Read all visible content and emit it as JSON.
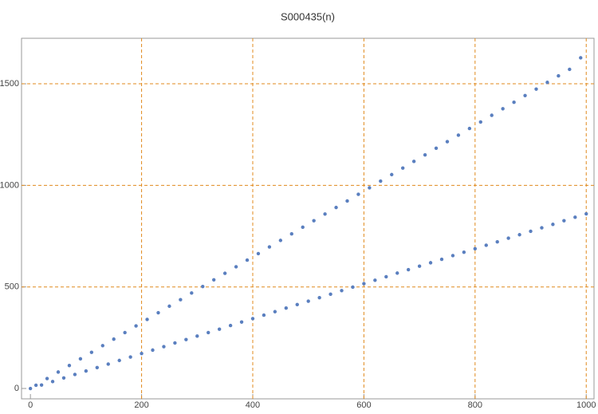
{
  "chart_data": {
    "type": "scatter",
    "title": "S000435(n)",
    "color": "#5a7fbf",
    "grid": true,
    "xlim": [
      -16,
      1014
    ],
    "ylim": [
      -51,
      1724
    ],
    "xticks": [
      0,
      200,
      400,
      600,
      800,
      1000
    ],
    "yticks": [
      0,
      500,
      1000,
      1500
    ],
    "x": [
      10,
      30,
      50,
      70,
      90,
      110,
      130,
      150,
      170,
      190,
      210,
      230,
      250,
      270,
      290,
      310,
      330,
      350,
      370,
      390,
      410,
      430,
      450,
      470,
      490,
      510,
      530,
      550,
      570,
      590,
      610,
      630,
      650,
      670,
      690,
      710,
      730,
      750,
      770,
      790,
      810,
      830,
      850,
      870,
      890,
      910,
      930,
      950,
      970,
      990,
      0,
      20,
      40,
      60,
      80,
      100,
      120,
      140,
      160,
      180,
      200,
      220,
      240,
      260,
      280,
      300,
      320,
      340,
      360,
      380,
      400,
      420,
      440,
      460,
      480,
      500,
      520,
      540,
      560,
      580,
      600,
      620,
      640,
      660,
      680,
      700,
      720,
      740,
      760,
      780,
      800,
      820,
      840,
      860,
      880,
      900,
      920,
      940,
      960,
      980,
      1000
    ],
    "values": [
      16,
      49,
      81,
      113,
      146,
      178,
      211,
      243,
      275,
      308,
      340,
      373,
      405,
      437,
      470,
      502,
      535,
      567,
      599,
      632,
      664,
      697,
      729,
      761,
      794,
      826,
      859,
      891,
      923,
      956,
      988,
      1021,
      1053,
      1085,
      1118,
      1150,
      1183,
      1215,
      1247,
      1280,
      1312,
      1345,
      1377,
      1409,
      1442,
      1474,
      1507,
      1539,
      1571,
      1628,
      0,
      17,
      34,
      52,
      69,
      86,
      103,
      120,
      138,
      155,
      172,
      189,
      206,
      224,
      241,
      258,
      275,
      292,
      310,
      327,
      344,
      361,
      378,
      396,
      413,
      430,
      447,
      464,
      482,
      499,
      516,
      533,
      550,
      568,
      585,
      602,
      619,
      636,
      654,
      671,
      688,
      705,
      722,
      740,
      757,
      774,
      791,
      808,
      826,
      843,
      860
    ]
  }
}
